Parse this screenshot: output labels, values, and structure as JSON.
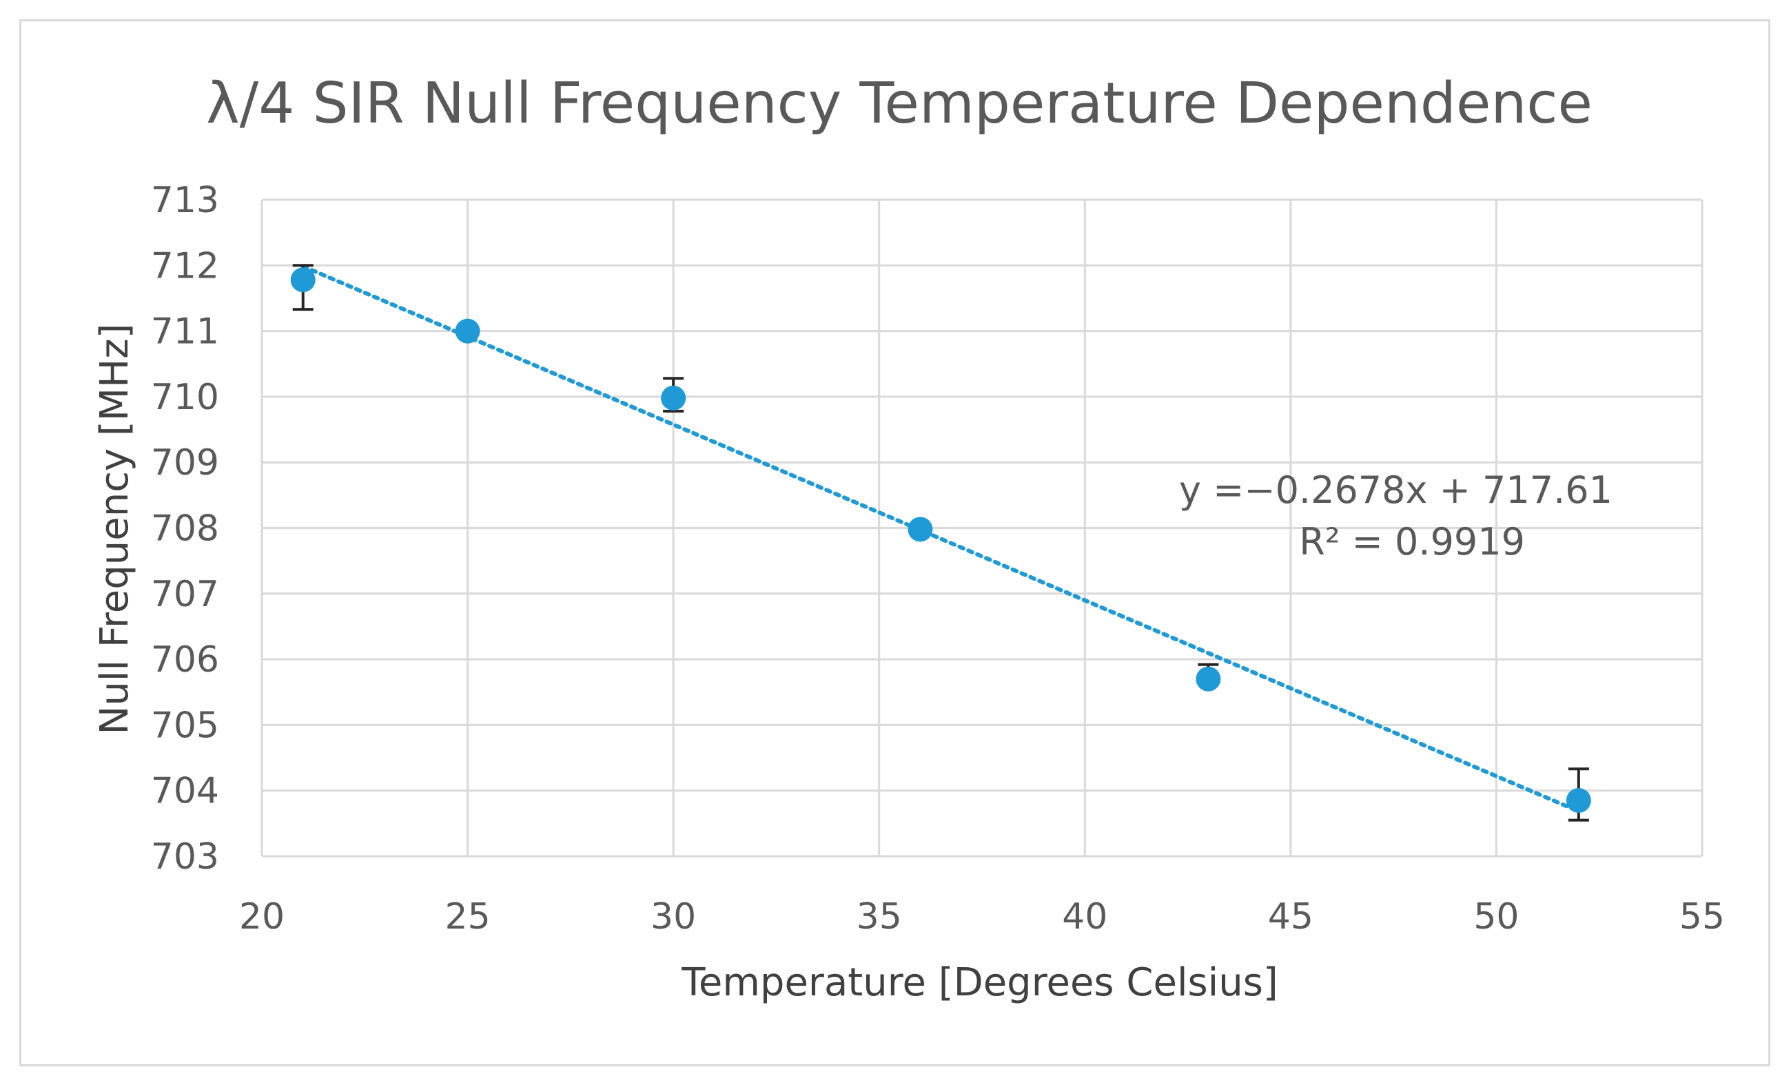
{
  "chart_data": {
    "type": "scatter",
    "title": "λ/4 SIR Null Frequency Temperature Dependence",
    "xlabel": "Temperature [Degrees Celsius]",
    "ylabel": "Null Frequency [MHz]",
    "xlim": [
      20,
      55
    ],
    "ylim": [
      703,
      713
    ],
    "xticks": [
      20,
      25,
      30,
      35,
      40,
      45,
      50,
      55
    ],
    "yticks": [
      703,
      704,
      705,
      706,
      707,
      708,
      709,
      710,
      711,
      712,
      713
    ],
    "grid": true,
    "series": [
      {
        "name": "Null Frequency",
        "color": "#1f9ad6",
        "points": [
          {
            "x": 21,
            "y": 711.78,
            "err_low": 0.45,
            "err_high": 0.22
          },
          {
            "x": 25,
            "y": 711.0,
            "err_low": 0.05,
            "err_high": 0.05
          },
          {
            "x": 30,
            "y": 709.98,
            "err_low": 0.2,
            "err_high": 0.3
          },
          {
            "x": 36,
            "y": 707.98,
            "err_low": 0.05,
            "err_high": 0.05
          },
          {
            "x": 43,
            "y": 705.7,
            "err_low": 0.05,
            "err_high": 0.22
          },
          {
            "x": 52,
            "y": 703.85,
            "err_low": 0.3,
            "err_high": 0.48
          }
        ]
      }
    ],
    "trendline": {
      "type": "linear",
      "slope": -0.2678,
      "intercept": 717.61,
      "x_range": [
        21,
        52
      ],
      "color": "#1f9ad6",
      "style": "dotted"
    },
    "annotations": {
      "equation": "y =−0.2678x + 717.61",
      "r_squared": "R² = 0.9919"
    }
  }
}
